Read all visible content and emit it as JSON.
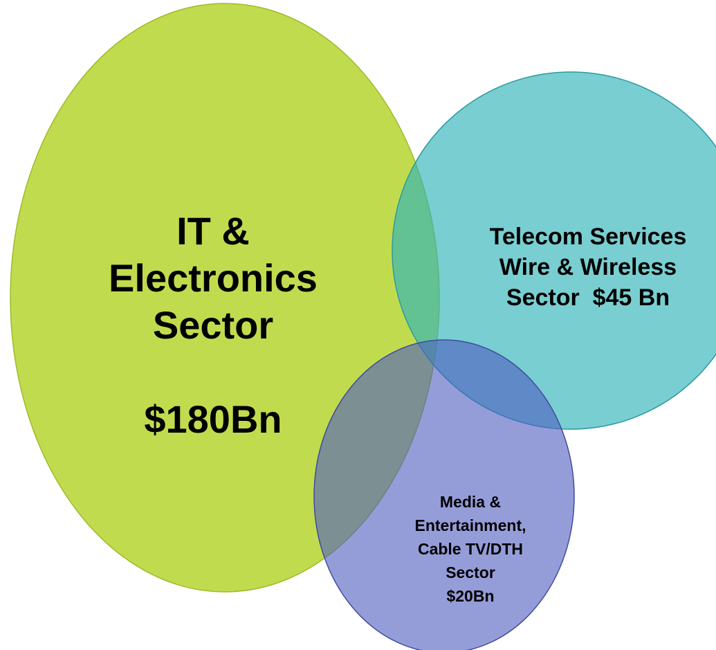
{
  "sectors": [
    {
      "id": "it",
      "lines": [
        "IT &",
        "Electronics",
        "Sector",
        "",
        "$180Bn"
      ],
      "color": "#b5d62f",
      "border": "#9dba28"
    },
    {
      "id": "telecom",
      "lines": [
        "Telecom Services",
        "Wire & Wireless",
        "Sector  $45 Bn"
      ],
      "color": "#31b3b8",
      "border": "#2a9aa0"
    },
    {
      "id": "media",
      "lines": [
        "Media &",
        "Entertainment,",
        "Cable TV/DTH",
        "Sector",
        "$20Bn"
      ],
      "color": "#5c6bc4",
      "border": "#3e4aa0"
    }
  ]
}
